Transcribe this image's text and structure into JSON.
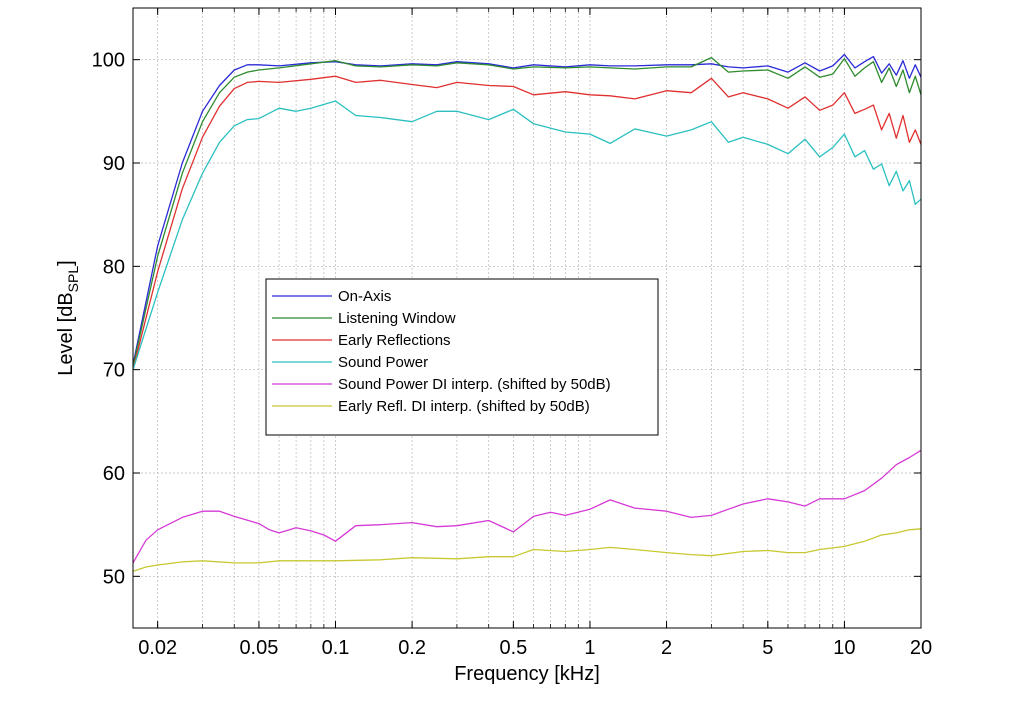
{
  "chart_data": {
    "type": "line",
    "title": "",
    "xlabel": "Frequency [kHz]",
    "ylabel_main": "Level [dB",
    "ylabel_sub": "SPL",
    "ylabel_end": "]",
    "xscale": "log",
    "xlim": [
      0.016,
      20
    ],
    "ylim": [
      45,
      105
    ],
    "xticks": [
      0.02,
      0.05,
      0.1,
      0.2,
      0.5,
      1,
      2,
      5,
      10,
      20
    ],
    "xtick_labels": [
      "0.02",
      "0.05",
      "0.1",
      "0.2",
      "0.5",
      "1",
      "2",
      "5",
      "10",
      "20"
    ],
    "yticks": [
      50,
      60,
      70,
      80,
      90,
      100
    ],
    "ytick_labels": [
      "50",
      "60",
      "70",
      "80",
      "90",
      "100"
    ],
    "grid": true,
    "legend_position": "center-left",
    "series": [
      {
        "name": "On-Axis",
        "color": "#2b2bd6",
        "x": [
          0.016,
          0.02,
          0.025,
          0.03,
          0.035,
          0.04,
          0.045,
          0.05,
          0.06,
          0.08,
          0.1,
          0.12,
          0.15,
          0.2,
          0.25,
          0.3,
          0.4,
          0.5,
          0.6,
          0.8,
          1,
          1.2,
          1.5,
          2,
          2.5,
          3,
          3.5,
          4,
          5,
          6,
          7,
          8,
          9,
          10,
          11,
          12,
          13,
          14,
          15,
          16,
          17,
          18,
          19,
          20
        ],
        "y": [
          70.5,
          82,
          90,
          95,
          97.5,
          99,
          99.5,
          99.5,
          99.4,
          99.7,
          99.8,
          99.5,
          99.4,
          99.6,
          99.5,
          99.8,
          99.6,
          99.2,
          99.5,
          99.3,
          99.5,
          99.4,
          99.4,
          99.5,
          99.5,
          99.6,
          99.3,
          99.2,
          99.4,
          98.8,
          99.7,
          98.9,
          99.4,
          100.5,
          99.2,
          99.8,
          100.3,
          98.7,
          99.6,
          98.5,
          99.9,
          98.2,
          99.5,
          98.3
        ]
      },
      {
        "name": "Listening Window",
        "color": "#2e8b2e",
        "x": [
          0.016,
          0.02,
          0.025,
          0.03,
          0.035,
          0.04,
          0.045,
          0.05,
          0.06,
          0.08,
          0.1,
          0.12,
          0.15,
          0.2,
          0.25,
          0.3,
          0.4,
          0.5,
          0.6,
          0.8,
          1,
          1.2,
          1.5,
          2,
          2.5,
          3,
          3.5,
          4,
          5,
          6,
          7,
          8,
          9,
          10,
          11,
          12,
          13,
          14,
          15,
          16,
          17,
          18,
          19,
          20
        ],
        "y": [
          70.3,
          81,
          89,
          94,
          96.8,
          98.3,
          98.8,
          99,
          99.2,
          99.6,
          99.9,
          99.4,
          99.3,
          99.5,
          99.4,
          99.7,
          99.5,
          99.1,
          99.3,
          99.2,
          99.3,
          99.2,
          99.1,
          99.3,
          99.3,
          100.2,
          98.8,
          98.9,
          99.0,
          98.2,
          99.3,
          98.3,
          98.6,
          100.1,
          98.4,
          99.2,
          99.8,
          97.8,
          99.2,
          97.4,
          99.0,
          96.8,
          98.4,
          96.6
        ]
      },
      {
        "name": "Early Reflections",
        "color": "#e03030",
        "x": [
          0.016,
          0.02,
          0.025,
          0.03,
          0.035,
          0.04,
          0.045,
          0.05,
          0.06,
          0.08,
          0.1,
          0.12,
          0.15,
          0.2,
          0.25,
          0.3,
          0.4,
          0.5,
          0.6,
          0.8,
          1,
          1.2,
          1.5,
          2,
          2.5,
          3,
          3.5,
          4,
          5,
          6,
          7,
          8,
          9,
          10,
          11,
          12,
          13,
          14,
          15,
          16,
          17,
          18,
          19,
          20
        ],
        "y": [
          70,
          79.5,
          87.5,
          92.5,
          95.5,
          97.2,
          97.8,
          97.9,
          97.8,
          98.1,
          98.4,
          97.8,
          98,
          97.6,
          97.3,
          97.8,
          97.5,
          97.4,
          96.6,
          96.9,
          96.6,
          96.5,
          96.2,
          97.0,
          96.8,
          98.2,
          96.4,
          96.8,
          96.2,
          95.3,
          96.4,
          95.1,
          95.6,
          96.8,
          94.8,
          95.2,
          95.6,
          93.2,
          94.8,
          92.4,
          94.6,
          92.0,
          93.2,
          91.8
        ]
      },
      {
        "name": "Sound Power",
        "color": "#2bc0c0",
        "x": [
          0.016,
          0.02,
          0.025,
          0.03,
          0.035,
          0.04,
          0.045,
          0.05,
          0.06,
          0.07,
          0.08,
          0.1,
          0.12,
          0.15,
          0.2,
          0.25,
          0.3,
          0.4,
          0.5,
          0.6,
          0.8,
          1,
          1.2,
          1.5,
          2,
          2.5,
          3,
          3.5,
          4,
          5,
          6,
          7,
          8,
          9,
          10,
          11,
          12,
          13,
          14,
          15,
          16,
          17,
          18,
          19,
          20
        ],
        "y": [
          70,
          77.5,
          84.5,
          89,
          92,
          93.6,
          94.2,
          94.3,
          95.3,
          95.0,
          95.3,
          96.0,
          94.6,
          94.4,
          94.0,
          95.0,
          95.0,
          94.2,
          95.2,
          93.8,
          93.0,
          92.8,
          91.9,
          93.3,
          92.6,
          93.2,
          94.0,
          92.0,
          92.5,
          91.8,
          90.9,
          92.3,
          90.6,
          91.5,
          92.8,
          90.6,
          91.2,
          89.4,
          89.9,
          87.8,
          89.2,
          87.3,
          88.3,
          86.0,
          86.5
        ]
      },
      {
        "name": "Sound Power DI interp. (shifted by 50dB)",
        "color": "#d63ad6",
        "x": [
          0.016,
          0.018,
          0.02,
          0.025,
          0.03,
          0.035,
          0.04,
          0.05,
          0.055,
          0.06,
          0.07,
          0.08,
          0.09,
          0.1,
          0.12,
          0.15,
          0.2,
          0.25,
          0.3,
          0.4,
          0.5,
          0.6,
          0.7,
          0.8,
          1,
          1.2,
          1.5,
          2,
          2.5,
          3,
          3.5,
          4,
          5,
          6,
          7,
          8,
          10,
          12,
          14,
          16,
          18,
          20
        ],
        "y": [
          51.3,
          53.5,
          54.5,
          55.7,
          56.3,
          56.3,
          55.8,
          55.1,
          54.5,
          54.2,
          54.7,
          54.4,
          54.0,
          53.4,
          54.9,
          55.0,
          55.2,
          54.8,
          54.9,
          55.4,
          54.3,
          55.8,
          56.2,
          55.9,
          56.5,
          57.4,
          56.6,
          56.3,
          55.7,
          55.9,
          56.5,
          57.0,
          57.5,
          57.2,
          56.8,
          57.5,
          57.5,
          58.3,
          59.5,
          60.8,
          61.5,
          62.2
        ]
      },
      {
        "name": "Early Refl. DI interp. (shifted by 50dB)",
        "color": "#c8c832",
        "x": [
          0.016,
          0.018,
          0.02,
          0.025,
          0.03,
          0.04,
          0.05,
          0.06,
          0.08,
          0.1,
          0.15,
          0.2,
          0.3,
          0.4,
          0.5,
          0.6,
          0.8,
          1,
          1.2,
          1.5,
          2,
          2.5,
          3,
          4,
          5,
          6,
          7,
          8,
          10,
          12,
          14,
          16,
          18,
          20
        ],
        "y": [
          50.5,
          50.9,
          51.1,
          51.4,
          51.5,
          51.3,
          51.3,
          51.5,
          51.5,
          51.5,
          51.6,
          51.8,
          51.7,
          51.9,
          51.9,
          52.6,
          52.4,
          52.6,
          52.8,
          52.6,
          52.3,
          52.1,
          52.0,
          52.4,
          52.5,
          52.3,
          52.3,
          52.6,
          52.9,
          53.4,
          54.0,
          54.2,
          54.5,
          54.6
        ]
      }
    ]
  }
}
